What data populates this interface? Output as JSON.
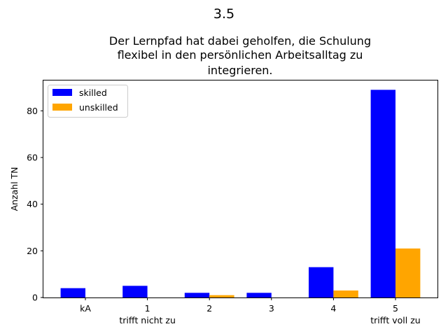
{
  "chart_data": {
    "type": "bar",
    "suptitle": "3.5",
    "title_lines": [
      "Der Lernpfad hat dabei geholfen, die Schulung",
      "flexibel in den persönlichen Arbeitsalltag zu",
      "integrieren."
    ],
    "xlabel": "",
    "ylabel": "Anzahl TN",
    "categories": [
      "kA",
      "1",
      "2",
      "3",
      "4",
      "5"
    ],
    "category_sublabels": [
      "",
      "trifft nicht zu",
      "",
      "",
      "",
      "trifft voll zu"
    ],
    "series": [
      {
        "name": "skilled",
        "color": "#0000ff",
        "values": [
          4,
          5,
          2,
          2,
          13,
          89
        ]
      },
      {
        "name": "unskilled",
        "color": "#ffa500",
        "values": [
          0,
          0,
          1,
          0,
          3,
          21
        ]
      }
    ],
    "ylim": [
      0,
      93
    ],
    "yticks": [
      0,
      20,
      40,
      60,
      80
    ],
    "grid": false,
    "legend_position": "upper-left"
  }
}
